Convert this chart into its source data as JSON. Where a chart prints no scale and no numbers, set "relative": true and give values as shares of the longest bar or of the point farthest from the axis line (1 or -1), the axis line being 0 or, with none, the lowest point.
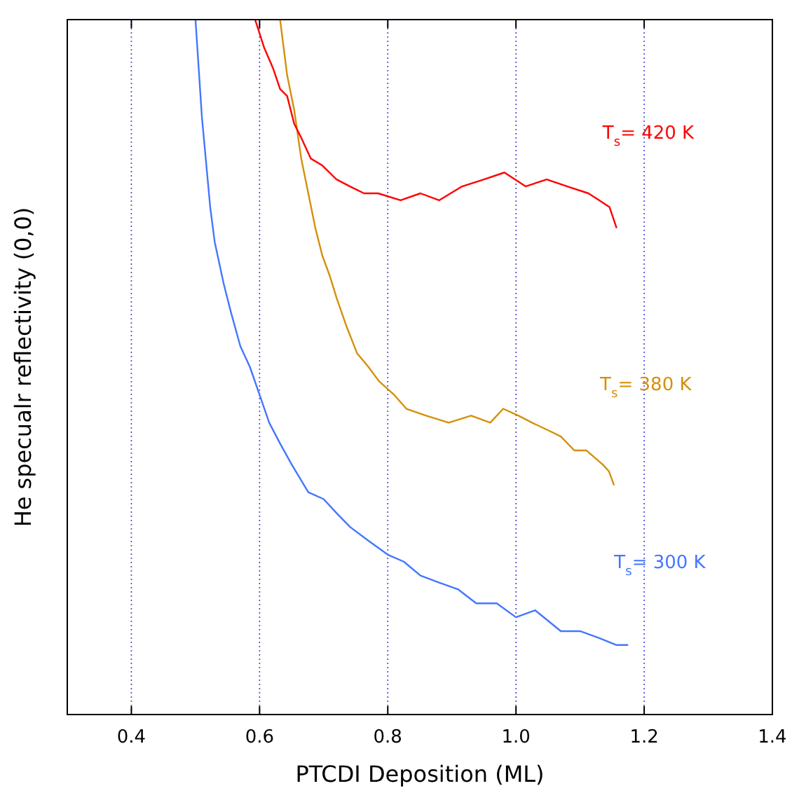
{
  "chart_data": {
    "type": "line",
    "xlabel": "PTCDI Deposition (ML)",
    "ylabel": "He specualr reflectivity (0,0)",
    "relative": true,
    "xlim": [
      0.3,
      1.4
    ],
    "xticks": [
      {
        "value": 0.4,
        "label": "0.4"
      },
      {
        "value": 0.6,
        "label": "0.6"
      },
      {
        "value": 0.8,
        "label": "0.8"
      },
      {
        "value": 1.0,
        "label": "1.0"
      },
      {
        "value": 1.2,
        "label": "1.2"
      },
      {
        "value": 1.4,
        "label": "1.4"
      }
    ],
    "grid": "x",
    "marker": "none",
    "line_style": "solid",
    "series": [
      {
        "name": "T$_{s}$= 300 K",
        "color": "#4477ff",
        "x": [
          0.5,
          0.51,
          0.523,
          0.53,
          0.544,
          0.555,
          0.57,
          0.585,
          0.6,
          0.615,
          0.632,
          0.65,
          0.676,
          0.7,
          0.72,
          0.741,
          0.77,
          0.8,
          0.825,
          0.851,
          0.88,
          0.91,
          0.938,
          0.97,
          1.0,
          1.03,
          1.07,
          1.1,
          1.13,
          1.157,
          1.175
        ],
        "values": [
          1,
          0.86,
          0.73,
          0.68,
          0.62,
          0.58,
          0.53,
          0.5,
          0.46,
          0.42,
          0.39,
          0.36,
          0.32,
          0.31,
          0.29,
          0.27,
          0.25,
          0.23,
          0.22,
          0.2,
          0.19,
          0.18,
          0.16,
          0.16,
          0.14,
          0.15,
          0.12,
          0.12,
          0.11,
          0.1,
          0.1
        ]
      },
      {
        "name": "T$_{s}$= 380 K",
        "color": "#d4900a",
        "x": [
          0.632,
          0.643,
          0.654,
          0.665,
          0.676,
          0.687,
          0.698,
          0.71,
          0.72,
          0.735,
          0.752,
          0.77,
          0.786,
          0.81,
          0.829,
          0.86,
          0.895,
          0.93,
          0.96,
          0.98,
          1.004,
          1.025,
          1.048,
          1.07,
          1.091,
          1.11,
          1.135,
          1.145,
          1.153
        ],
        "values": [
          1,
          0.92,
          0.87,
          0.8,
          0.75,
          0.7,
          0.66,
          0.63,
          0.6,
          0.56,
          0.52,
          0.5,
          0.48,
          0.46,
          0.44,
          0.43,
          0.42,
          0.43,
          0.42,
          0.44,
          0.43,
          0.42,
          0.41,
          0.4,
          0.38,
          0.38,
          0.36,
          0.35,
          0.33
        ]
      },
      {
        "name": "T$_{s}$= 420 K",
        "color": "#ff0000",
        "x": [
          0.593,
          0.607,
          0.621,
          0.632,
          0.643,
          0.654,
          0.665,
          0.68,
          0.698,
          0.72,
          0.741,
          0.763,
          0.785,
          0.82,
          0.851,
          0.88,
          0.916,
          0.95,
          0.982,
          1.015,
          1.048,
          1.08,
          1.113,
          1.13,
          1.146,
          1.157
        ],
        "values": [
          1,
          0.96,
          0.93,
          0.9,
          0.89,
          0.85,
          0.83,
          0.8,
          0.79,
          0.77,
          0.76,
          0.75,
          0.75,
          0.74,
          0.75,
          0.74,
          0.76,
          0.77,
          0.78,
          0.76,
          0.77,
          0.76,
          0.75,
          0.74,
          0.73,
          0.7
        ]
      }
    ]
  }
}
